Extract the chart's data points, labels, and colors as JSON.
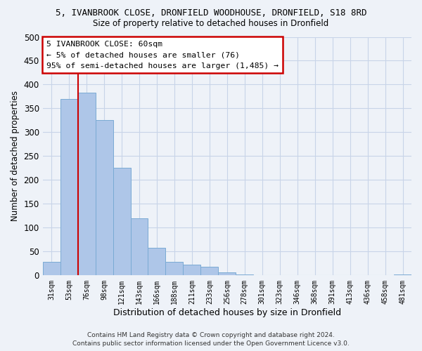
{
  "title": "5, IVANBROOK CLOSE, DRONFIELD WOODHOUSE, DRONFIELD, S18 8RD",
  "subtitle": "Size of property relative to detached houses in Dronfield",
  "xlabel": "Distribution of detached houses by size in Dronfield",
  "ylabel": "Number of detached properties",
  "bar_labels": [
    "31sqm",
    "53sqm",
    "76sqm",
    "98sqm",
    "121sqm",
    "143sqm",
    "166sqm",
    "188sqm",
    "211sqm",
    "233sqm",
    "256sqm",
    "278sqm",
    "301sqm",
    "323sqm",
    "346sqm",
    "368sqm",
    "391sqm",
    "413sqm",
    "436sqm",
    "458sqm",
    "481sqm"
  ],
  "bar_values": [
    28,
    370,
    383,
    325,
    226,
    120,
    58,
    28,
    23,
    18,
    7,
    2,
    1,
    0,
    0,
    0,
    0,
    0,
    0,
    0,
    2
  ],
  "bar_color": "#aec6e8",
  "bar_edge_color": "#7aaad4",
  "vline_color": "#cc0000",
  "ylim": [
    0,
    500
  ],
  "yticks": [
    0,
    50,
    100,
    150,
    200,
    250,
    300,
    350,
    400,
    450,
    500
  ],
  "annotation_title": "5 IVANBROOK CLOSE: 60sqm",
  "annotation_line1": "← 5% of detached houses are smaller (76)",
  "annotation_line2": "95% of semi-detached houses are larger (1,485) →",
  "annotation_box_color": "#ffffff",
  "annotation_box_edge": "#cc0000",
  "footer1": "Contains HM Land Registry data © Crown copyright and database right 2024.",
  "footer2": "Contains public sector information licensed under the Open Government Licence v3.0.",
  "grid_color": "#c8d4e8",
  "background_color": "#eef2f8"
}
